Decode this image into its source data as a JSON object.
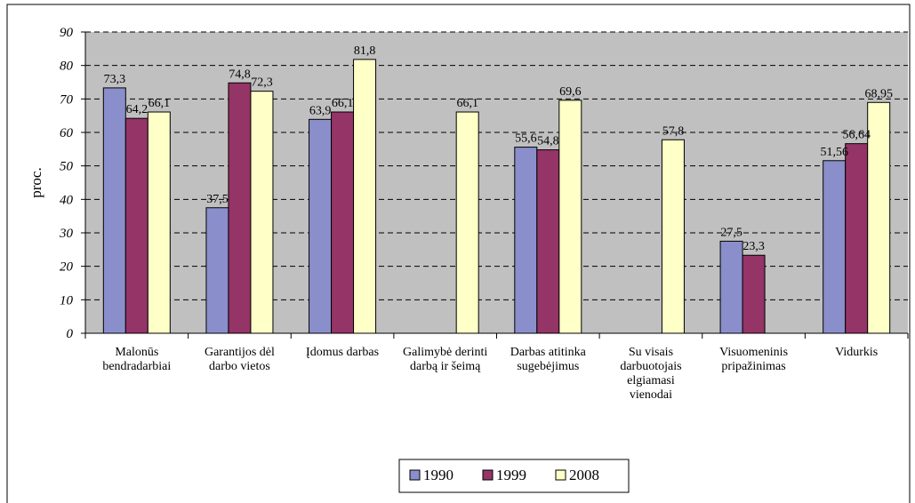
{
  "chart_data": {
    "type": "bar",
    "ylabel": "proc.",
    "xlabel": "",
    "ylim": [
      0,
      90
    ],
    "yticks": [
      0,
      10,
      20,
      30,
      40,
      50,
      60,
      70,
      80,
      90
    ],
    "grid": true,
    "legend_position": "bottom",
    "categories": [
      [
        "Malonūs",
        "bendradarbiai"
      ],
      [
        "Garantijos dėl",
        "darbo vietos"
      ],
      [
        "Įdomus darbas"
      ],
      [
        "Galimybė derinti",
        "darbą ir šeimą"
      ],
      [
        "Darbas atitinka",
        "sugebėjimus"
      ],
      [
        "Su visais",
        "darbuotojais",
        "elgiamasi",
        "vienodai"
      ],
      [
        "Visuomeninis",
        "pripažinimas"
      ],
      [
        "Vidurkis"
      ]
    ],
    "series": [
      {
        "name": "1990",
        "color": "#8A8FCB",
        "values": [
          73.3,
          37.5,
          63.9,
          null,
          55.6,
          null,
          27.5,
          51.56
        ],
        "labels": [
          "73,3",
          "37,5",
          "63,9",
          "",
          "55,6",
          "",
          "27,5",
          "51,56"
        ]
      },
      {
        "name": "1999",
        "color": "#953466",
        "values": [
          64.2,
          74.8,
          66.1,
          null,
          54.8,
          null,
          23.3,
          56.64
        ],
        "labels": [
          "64,2",
          "74,8",
          "66,1",
          "",
          "54,8",
          "",
          "23,3",
          "56,64"
        ]
      },
      {
        "name": "2008",
        "color": "#FFFFC8",
        "values": [
          66.1,
          72.3,
          81.8,
          66.1,
          69.6,
          57.8,
          null,
          68.95
        ],
        "labels": [
          "66,1",
          "72,3",
          "81,8",
          "66,1",
          "69,6",
          "57,8",
          "",
          "68,95"
        ]
      }
    ],
    "plot_background": "#C0C0C0"
  }
}
